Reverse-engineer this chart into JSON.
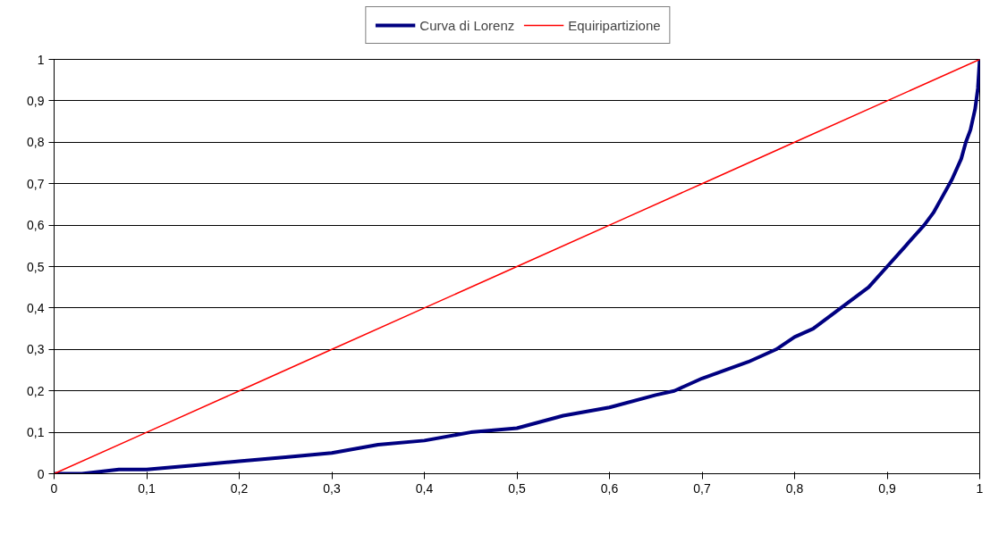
{
  "chart_data": {
    "type": "line",
    "xlim": [
      0,
      1
    ],
    "ylim": [
      0,
      1
    ],
    "xticks": [
      0,
      {
        "value": 0.1,
        "label": "0,1"
      },
      {
        "value": 0.2,
        "label": "0,2"
      },
      {
        "value": 0.3,
        "label": "0,3"
      },
      {
        "value": 0.4,
        "label": "0,4"
      },
      {
        "value": 0.5,
        "label": "0,5"
      },
      {
        "value": 0.6,
        "label": "0,6"
      },
      {
        "value": 0.7,
        "label": "0,7"
      },
      {
        "value": 0.8,
        "label": "0,8"
      },
      {
        "value": 0.9,
        "label": "0,9"
      },
      1
    ],
    "yticks": [
      0,
      {
        "value": 0.1,
        "label": "0,1"
      },
      {
        "value": 0.2,
        "label": "0,2"
      },
      {
        "value": 0.3,
        "label": "0,3"
      },
      {
        "value": 0.4,
        "label": "0,4"
      },
      {
        "value": 0.5,
        "label": "0,5"
      },
      {
        "value": 0.6,
        "label": "0,6"
      },
      {
        "value": 0.7,
        "label": "0,7"
      },
      {
        "value": 0.8,
        "label": "0,8"
      },
      {
        "value": 0.9,
        "label": "0,9"
      },
      1
    ],
    "grid": "y",
    "legend": "top",
    "marker": "none",
    "line_style": "solid",
    "series": [
      {
        "name": "Curva di Lorenz",
        "color": "#000080",
        "x": [
          0,
          0.03,
          0.07,
          0.1,
          0.15,
          0.2,
          0.25,
          0.3,
          0.35,
          0.4,
          0.45,
          0.5,
          0.55,
          0.6,
          0.65,
          0.67,
          0.7,
          0.75,
          0.78,
          0.8,
          0.82,
          0.85,
          0.88,
          0.9,
          0.92,
          0.94,
          0.95,
          0.96,
          0.97,
          0.98,
          0.985,
          0.99,
          0.995,
          0.998,
          1
        ],
        "values": [
          0,
          0.0,
          0.01,
          0.01,
          0.02,
          0.03,
          0.04,
          0.05,
          0.07,
          0.08,
          0.1,
          0.11,
          0.14,
          0.16,
          0.19,
          0.2,
          0.23,
          0.27,
          0.3,
          0.33,
          0.35,
          0.4,
          0.45,
          0.5,
          0.55,
          0.6,
          0.63,
          0.67,
          0.71,
          0.76,
          0.8,
          0.83,
          0.88,
          0.93,
          1
        ]
      },
      {
        "name": "Equiripartizione",
        "color": "#ff0000",
        "x": [
          0,
          0.1,
          0.2,
          0.3,
          0.4,
          0.5,
          0.6,
          0.7,
          0.8,
          0.9,
          1
        ],
        "values": [
          0,
          0.1,
          0.2,
          0.3,
          0.4,
          0.5,
          0.6,
          0.7,
          0.8,
          0.9,
          1
        ]
      }
    ]
  }
}
